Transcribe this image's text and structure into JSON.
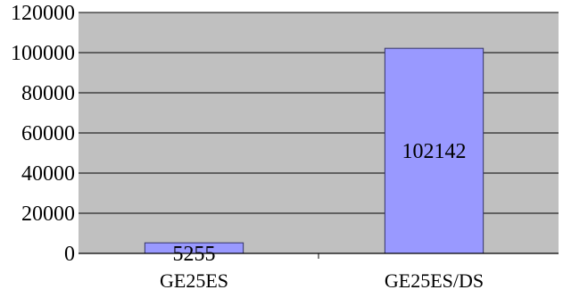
{
  "chart_data": {
    "type": "bar",
    "categories": [
      "GE25ES",
      "GE25ES/DS"
    ],
    "values": [
      5255,
      102142
    ],
    "data_labels": [
      "5255",
      "102142"
    ],
    "yticks": [
      0,
      20000,
      40000,
      60000,
      80000,
      100000,
      120000
    ],
    "ytick_labels": [
      "0",
      "20000",
      "40000",
      "60000",
      "80000",
      "100000",
      "120000"
    ],
    "ylim": [
      0,
      120000
    ],
    "title": "",
    "xlabel": "",
    "ylabel": "",
    "grid": true,
    "legend": "none",
    "colors": {
      "plot_background": "#c0c0c0",
      "bar_fill": "#9999ff",
      "bar_stroke": "#333366",
      "gridline": "#000000",
      "text": "#000000"
    }
  }
}
